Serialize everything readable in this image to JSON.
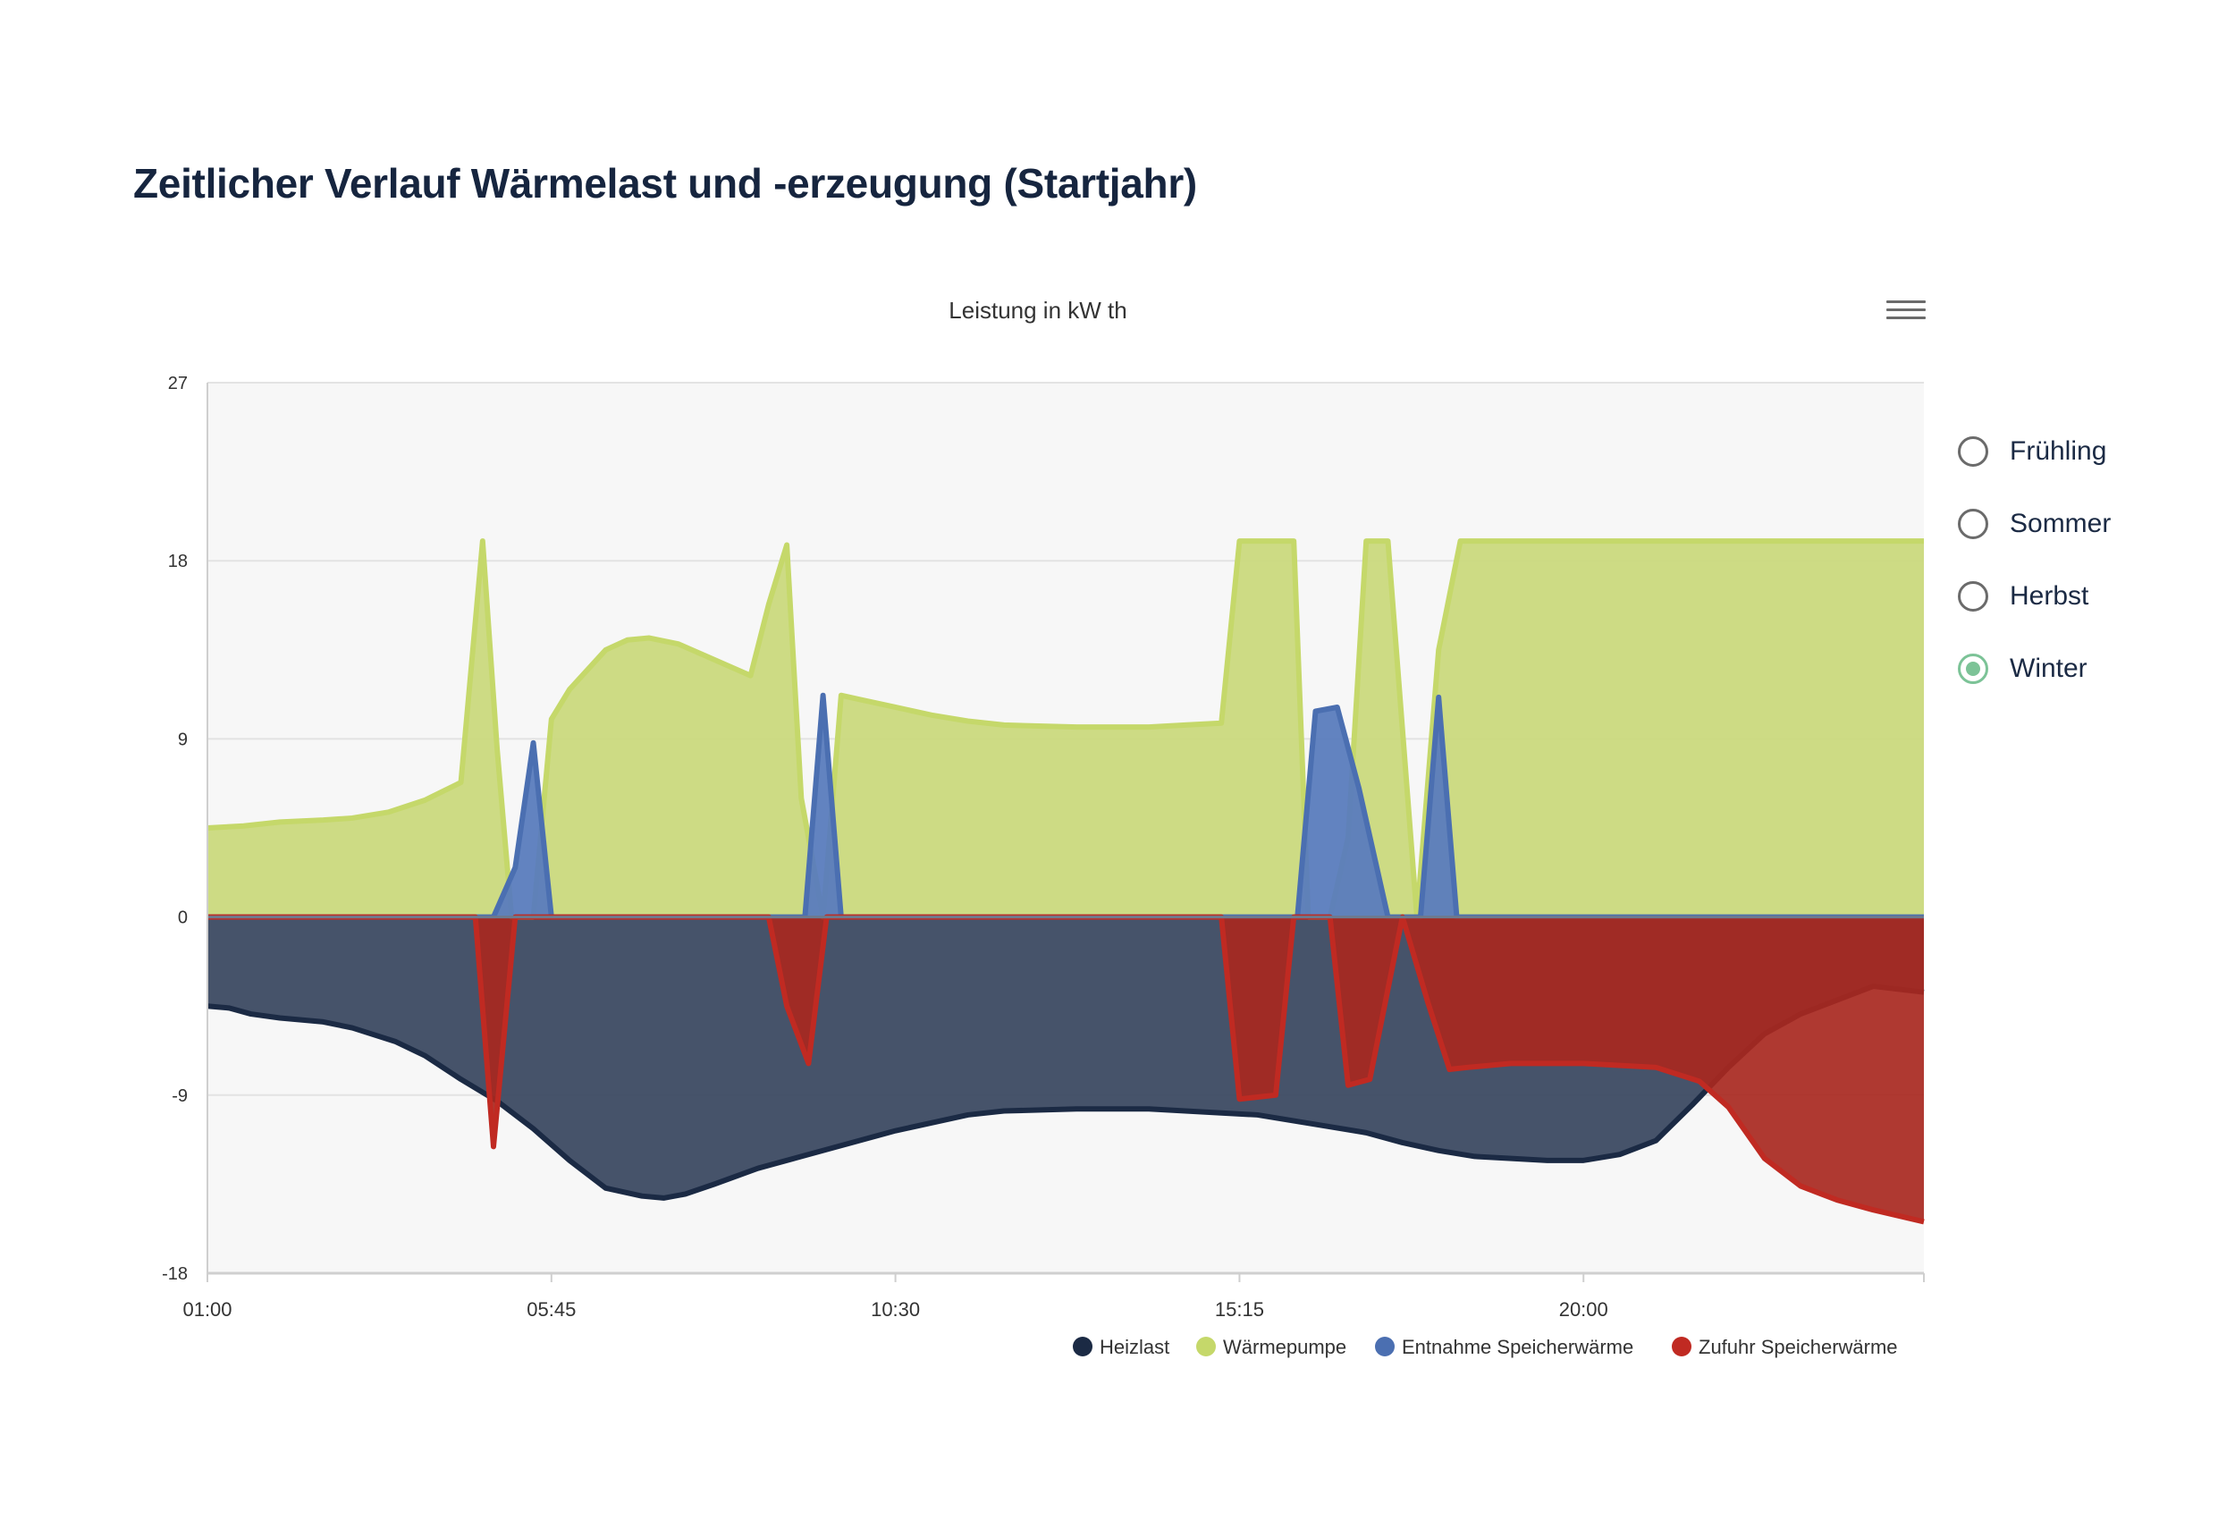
{
  "page": {
    "title": "Zeitlicher Verlauf Wärmelast und -erzeugung (Startjahr)"
  },
  "menu": {
    "icon": "hamburger-menu-icon"
  },
  "season_selector": {
    "options": [
      {
        "label": "Frühling",
        "selected": false
      },
      {
        "label": "Sommer",
        "selected": false
      },
      {
        "label": "Herbst",
        "selected": false
      },
      {
        "label": "Winter",
        "selected": true
      }
    ],
    "accent_color": "#7cc397"
  },
  "chart_data": {
    "type": "area",
    "title": "Leistung in kW th",
    "y_ticks": [
      27,
      18,
      9,
      0,
      -9,
      -18
    ],
    "ylim": [
      -18,
      27
    ],
    "x_ticks": [
      "01:00",
      "05:45",
      "10:30",
      "15:15",
      "20:00"
    ],
    "x_tick_hours": [
      1,
      5.75,
      10.5,
      15.25,
      20
    ],
    "xlim": [
      1,
      24.7
    ],
    "grid": true,
    "legend_position": "bottom-right",
    "series": [
      {
        "name": "Heizlast",
        "color": "#1b2a44",
        "fill": "#3c4a62",
        "x": [
          1,
          1.3,
          1.6,
          2,
          2.6,
          3,
          3.6,
          4,
          4.5,
          5,
          5.5,
          6,
          6.5,
          7,
          7.3,
          7.6,
          8,
          8.6,
          9.5,
          10.5,
          11.5,
          12,
          13,
          14,
          15,
          15.5,
          16,
          16.5,
          17,
          17.5,
          18,
          18.5,
          19,
          19.5,
          20,
          20.5,
          21,
          21.5,
          22,
          22.5,
          23,
          23.5,
          24,
          24.7
        ],
        "y": [
          -4.5,
          -4.6,
          -4.9,
          -5.1,
          -5.3,
          -5.6,
          -6.3,
          -7,
          -8.2,
          -9.3,
          -10.7,
          -12.3,
          -13.7,
          -14.1,
          -14.2,
          -14.0,
          -13.5,
          -12.7,
          -11.8,
          -10.8,
          -10.0,
          -9.8,
          -9.7,
          -9.7,
          -9.9,
          -10.0,
          -10.3,
          -10.6,
          -10.9,
          -11.4,
          -11.8,
          -12.1,
          -12.2,
          -12.3,
          -12.3,
          -12.0,
          -11.3,
          -9.5,
          -7.6,
          -5.9,
          -4.9,
          -4.2,
          -3.5,
          -3.8
        ]
      },
      {
        "name": "Wärmepumpe",
        "color": "#c5d86a",
        "fill": "#cad97d",
        "x": [
          1,
          1.5,
          2,
          2.6,
          3,
          3.5,
          4,
          4.5,
          4.8,
          5,
          5.2,
          5.5,
          5.75,
          6,
          6.5,
          6.8,
          7.1,
          7.5,
          8,
          8.5,
          8.75,
          9,
          9.2,
          9.5,
          9.75,
          10,
          10.5,
          11,
          11.5,
          12,
          13,
          14,
          14.5,
          15,
          15.25,
          15.5,
          16,
          16.2,
          16.5,
          16.75,
          17,
          17.3,
          17.7,
          18,
          18.3,
          18.6,
          19,
          20,
          21,
          22,
          23,
          24,
          24.7
        ],
        "y": [
          4.5,
          4.6,
          4.8,
          4.9,
          5.0,
          5.3,
          5.9,
          6.8,
          19,
          8.5,
          0,
          0,
          10,
          11.5,
          13.5,
          14.0,
          14.1,
          13.8,
          13.0,
          12.2,
          15.8,
          18.8,
          6,
          0,
          11.2,
          11.0,
          10.6,
          10.2,
          9.9,
          9.7,
          9.6,
          9.6,
          9.7,
          9.8,
          19,
          19,
          19,
          0,
          0,
          4,
          19,
          19,
          0,
          13.5,
          19,
          19,
          19,
          19,
          19,
          19,
          19,
          19,
          19
        ]
      },
      {
        "name": "Entnahme Speicherwärme",
        "color": "#4b6fb1",
        "fill": "#5a7cbd",
        "x": [
          1,
          4.95,
          5.25,
          5.5,
          5.75,
          9.25,
          9.5,
          9.75,
          16.05,
          16.3,
          16.6,
          16.9,
          17.3,
          17.75,
          18.0,
          18.25,
          24.7
        ],
        "y": [
          0,
          0,
          2.5,
          8.8,
          0,
          0,
          11.2,
          0,
          0,
          10.4,
          10.6,
          6.5,
          0,
          0,
          11.1,
          0,
          0
        ]
      },
      {
        "name": "Zufuhr Speicherwärme",
        "color": "#c02a22",
        "fill": "#a82820",
        "x": [
          1,
          4.7,
          4.95,
          5.25,
          8.75,
          9.0,
          9.3,
          9.55,
          15.0,
          15.25,
          15.75,
          16.0,
          16.5,
          16.75,
          17.05,
          17.5,
          17.85,
          18.15,
          18.4,
          19.0,
          20.0,
          21.0,
          21.6,
          22.0,
          22.5,
          23.0,
          23.5,
          24.0,
          24.7
        ],
        "y": [
          0,
          0,
          -11.6,
          0,
          0,
          -4.5,
          -7.4,
          0,
          0,
          -9.2,
          -9.0,
          0,
          0,
          -8.5,
          -8.2,
          0,
          -4.3,
          -7.7,
          -7.6,
          -7.4,
          -7.4,
          -7.6,
          -8.3,
          -9.6,
          -12.2,
          -13.6,
          -14.3,
          -14.8,
          -15.4
        ]
      }
    ]
  }
}
